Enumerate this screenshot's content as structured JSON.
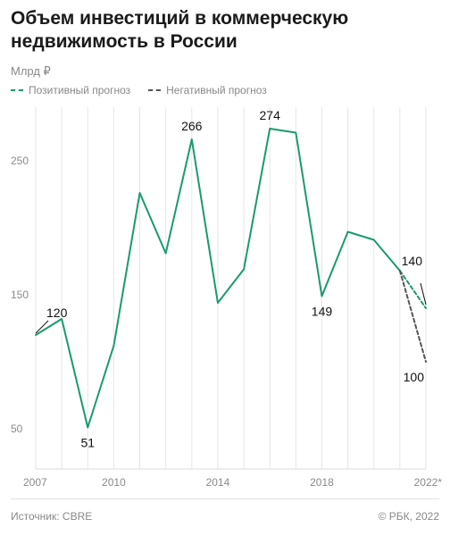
{
  "header": {
    "title": "Объем инвестиций в коммерческую недвижимость в России",
    "unit": "Млрд ₽"
  },
  "legend": {
    "positive_label": "Позитивный прогноз",
    "negative_label": "Негативный прогноз"
  },
  "footer": {
    "source": "Источник: CBRE",
    "copyright": "© РБК, 2022"
  },
  "colors": {
    "main": "#1a9a6c",
    "positive": "#1a9a6c",
    "negative": "#555555",
    "grid": "#e6e6e6"
  },
  "chart_data": {
    "type": "line",
    "title": "Объем инвестиций в коммерческую недвижимость в России",
    "ylabel": "Млрд ₽",
    "xlabel": "",
    "xlim": [
      2007,
      2022
    ],
    "ylim": [
      20,
      290
    ],
    "yticks": [
      50,
      150,
      250
    ],
    "xticks": [
      {
        "value": 2007,
        "label": "2007"
      },
      {
        "value": 2010,
        "label": "2010"
      },
      {
        "value": 2014,
        "label": "2014"
      },
      {
        "value": 2018,
        "label": "2018"
      },
      {
        "value": 2022,
        "label": "2022*"
      }
    ],
    "grid": "vertical",
    "series": [
      {
        "x": [
          2007,
          2008,
          2009,
          2010,
          2011,
          2012,
          2013,
          2014,
          2015,
          2016,
          2017,
          2018,
          2019,
          2020,
          2021
        ],
        "values": [
          120,
          132,
          51,
          112,
          226,
          181,
          266,
          144,
          169,
          274,
          271,
          149,
          197,
          191,
          168
        ],
        "style": "solid"
      },
      {
        "name": "Позитивный прогноз",
        "x": [
          2021,
          2022
        ],
        "values": [
          168,
          140
        ],
        "style": "dashed"
      },
      {
        "name": "Негативный прогноз",
        "x": [
          2021,
          2022
        ],
        "values": [
          168,
          100
        ],
        "style": "dashed"
      }
    ],
    "annotations": [
      {
        "x": 2007,
        "y": 120,
        "label": "120",
        "pos": "above-right-leader"
      },
      {
        "x": 2009,
        "y": 51,
        "label": "51",
        "pos": "below"
      },
      {
        "x": 2013,
        "y": 266,
        "label": "266",
        "pos": "above"
      },
      {
        "x": 2016,
        "y": 274,
        "label": "274",
        "pos": "above"
      },
      {
        "x": 2018,
        "y": 149,
        "label": "149",
        "pos": "below"
      },
      {
        "x": 2022,
        "y": 140,
        "label": "140",
        "pos": "above-left-leader"
      },
      {
        "x": 2022,
        "y": 100,
        "label": "100",
        "pos": "below-left"
      }
    ]
  }
}
